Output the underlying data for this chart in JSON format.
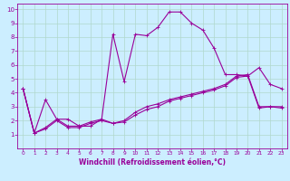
{
  "xlabel": "Windchill (Refroidissement éolien,°C)",
  "bg_color": "#cceeff",
  "grid_color": "#b0d8cc",
  "line_color": "#990099",
  "xlim": [
    -0.5,
    23.5
  ],
  "ylim": [
    0,
    10.4
  ],
  "xticks": [
    0,
    1,
    2,
    3,
    4,
    5,
    6,
    7,
    8,
    9,
    10,
    11,
    12,
    13,
    14,
    15,
    16,
    17,
    18,
    19,
    20,
    21,
    22,
    23
  ],
  "yticks": [
    1,
    2,
    3,
    4,
    5,
    6,
    7,
    8,
    9,
    10
  ],
  "curve1_x": [
    0,
    1,
    2,
    3,
    4,
    5,
    6,
    7,
    8,
    9,
    10,
    11,
    12,
    13,
    14,
    15,
    16,
    17,
    18,
    19,
    20,
    21,
    22,
    23
  ],
  "curve1_y": [
    4.3,
    1.1,
    3.5,
    2.1,
    2.1,
    1.6,
    1.6,
    2.1,
    8.2,
    4.8,
    8.2,
    8.1,
    8.7,
    9.8,
    9.8,
    9.0,
    8.5,
    7.2,
    5.3,
    5.3,
    5.2,
    5.8,
    4.6,
    4.3
  ],
  "curve2_x": [
    0,
    1,
    2,
    3,
    4,
    5,
    6,
    7,
    8,
    9,
    10,
    11,
    12,
    13,
    14,
    15,
    16,
    17,
    18,
    19,
    20,
    21,
    22,
    23
  ],
  "curve2_y": [
    4.3,
    1.1,
    1.5,
    2.1,
    1.6,
    1.6,
    1.9,
    2.1,
    1.8,
    2.0,
    2.6,
    3.0,
    3.2,
    3.5,
    3.7,
    3.9,
    4.1,
    4.3,
    4.6,
    5.2,
    5.3,
    3.0,
    3.0,
    3.0
  ],
  "curve3_x": [
    0,
    1,
    2,
    3,
    4,
    5,
    6,
    7,
    8,
    9,
    10,
    11,
    12,
    13,
    14,
    15,
    16,
    17,
    18,
    19,
    20,
    21,
    22,
    23
  ],
  "curve3_y": [
    4.3,
    1.1,
    1.4,
    2.0,
    1.5,
    1.5,
    1.8,
    2.0,
    1.8,
    1.9,
    2.4,
    2.8,
    3.0,
    3.4,
    3.6,
    3.8,
    4.0,
    4.2,
    4.5,
    5.1,
    5.2,
    2.9,
    3.0,
    2.9
  ]
}
